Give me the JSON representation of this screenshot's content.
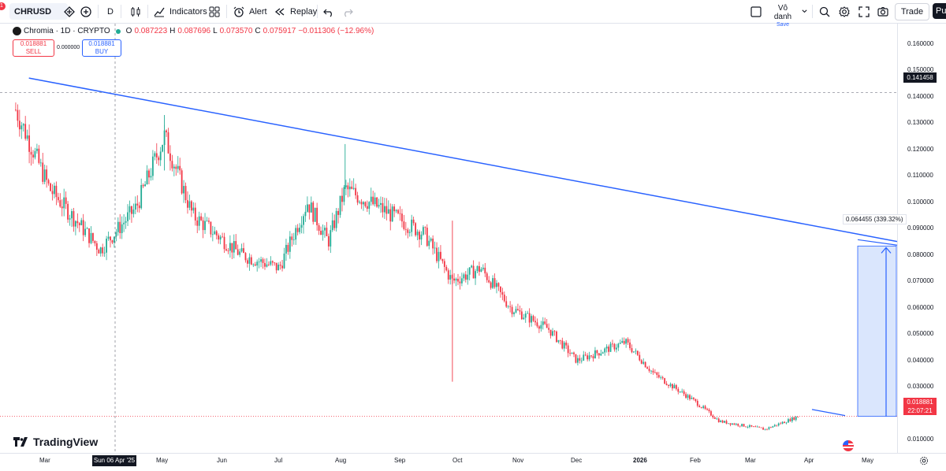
{
  "toolbar": {
    "symbol": "CHRUSD",
    "interval": "D",
    "indicators_label": "Indicators",
    "alert_label": "Alert",
    "replay_label": "Replay",
    "layout_name": "Vô danh",
    "save_label": "Save",
    "trade_label": "Trade",
    "publish_label": "Pul",
    "notification_count": "1"
  },
  "legend": {
    "name": "Chromia · 1D · CRYPTO",
    "o_key": "O",
    "o_val": "0.087223",
    "h_key": "H",
    "h_val": "0.087696",
    "l_key": "L",
    "l_val": "0.073570",
    "c_key": "C",
    "c_val": "0.075917",
    "change": "−0.011306 (−12.96%)"
  },
  "trading": {
    "sell_price": "0.018881",
    "sell_label": "SELL",
    "spread": "0.000000",
    "buy_price": "0.018881",
    "buy_label": "BUY"
  },
  "price_axis": {
    "ticks": [
      "0.160000",
      "0.150000",
      "0.140000",
      "0.130000",
      "0.120000",
      "0.110000",
      "0.100000",
      "0.090000",
      "0.080000",
      "0.070000",
      "0.060000",
      "0.050000",
      "0.040000",
      "0.030000",
      "0.020000",
      "0.010000"
    ],
    "crosshair_price": "0.141458",
    "current_price": "0.018881",
    "countdown": "22:07:21"
  },
  "time_axis": {
    "labels": [
      "Mar",
      "May",
      "Jun",
      "Jul",
      "Aug",
      "Sep",
      "Oct",
      "Nov",
      "Dec",
      "2026",
      "Feb",
      "Mar",
      "Apr",
      "May"
    ],
    "crosshair_date": "Sun 06 Apr '25"
  },
  "measure": {
    "label": "0.064455 (339.32%) "
  },
  "branding": {
    "logo_text": "TradingView"
  },
  "colors": {
    "up": "#22ab94",
    "down": "#f23645",
    "trendline": "#2962ff",
    "measure_fill": "#d6e3fd"
  },
  "chart_data": {
    "type": "candlestick",
    "symbol": "CHRUSD",
    "interval": "1D",
    "ylim": [
      0.005,
      0.163
    ],
    "approx_closes": [
      {
        "x": "2025-02-20",
        "y": 0.135
      },
      {
        "x": "2025-03-10",
        "y": 0.105
      },
      {
        "x": "2025-04-06",
        "y": 0.082
      },
      {
        "x": "2025-04-25",
        "y": 0.098
      },
      {
        "x": "2025-05-10",
        "y": 0.125
      },
      {
        "x": "2025-05-25",
        "y": 0.095
      },
      {
        "x": "2025-06-20",
        "y": 0.08
      },
      {
        "x": "2025-07-10",
        "y": 0.075
      },
      {
        "x": "2025-07-25",
        "y": 0.1
      },
      {
        "x": "2025-08-05",
        "y": 0.085
      },
      {
        "x": "2025-08-14",
        "y": 0.105
      },
      {
        "x": "2025-09-01",
        "y": 0.098
      },
      {
        "x": "2025-09-25",
        "y": 0.088
      },
      {
        "x": "2025-10-10",
        "y": 0.07
      },
      {
        "x": "2025-10-25",
        "y": 0.075
      },
      {
        "x": "2025-11-10",
        "y": 0.06
      },
      {
        "x": "2025-11-30",
        "y": 0.052
      },
      {
        "x": "2025-12-15",
        "y": 0.04
      },
      {
        "x": "2026-01-10",
        "y": 0.047
      },
      {
        "x": "2026-01-25",
        "y": 0.035
      },
      {
        "x": "2026-02-15",
        "y": 0.025
      },
      {
        "x": "2026-03-01",
        "y": 0.017
      },
      {
        "x": "2026-03-25",
        "y": 0.014
      },
      {
        "x": "2026-04-12",
        "y": 0.0189
      }
    ],
    "trendline": {
      "from": {
        "x": "2025-02-27",
        "y": 0.147
      },
      "to": {
        "x": "2026-04-22",
        "y": 0.086
      }
    },
    "measure_range": {
      "from": 0.0189,
      "to": 0.0834
    }
  }
}
